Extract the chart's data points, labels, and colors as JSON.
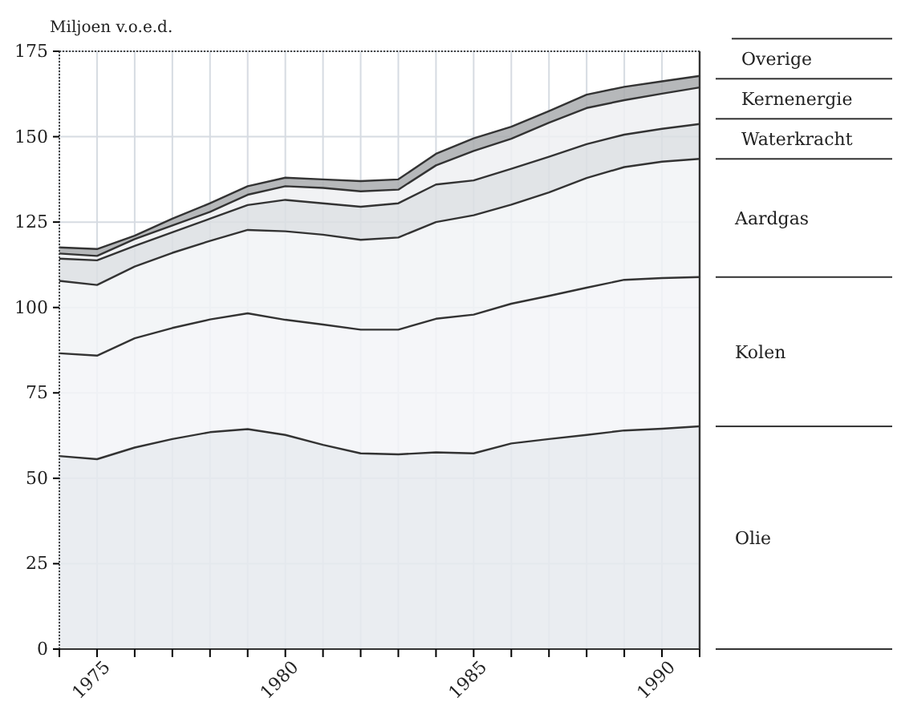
{
  "chart_data": {
    "type": "area",
    "stacked": true,
    "ylabel": "Miljoen v.o.e.d.",
    "x": [
      1974,
      1975,
      1976,
      1977,
      1978,
      1979,
      1980,
      1981,
      1982,
      1983,
      1984,
      1985,
      1986,
      1987,
      1988,
      1989,
      1990,
      1991
    ],
    "series": [
      {
        "name": "Olie",
        "color": "#e6eaef",
        "values": [
          56.5,
          55.6,
          59,
          61.5,
          63.5,
          64.4,
          62.7,
          59.8,
          57.3,
          57,
          57.6,
          57.3,
          60.2,
          61.5,
          62.7,
          64,
          64.5,
          65.2
        ]
      },
      {
        "name": "Kolen",
        "color": "#f3f5f8",
        "values": [
          30.1,
          30.3,
          32,
          32.5,
          33,
          33.9,
          33.7,
          35.2,
          36.2,
          36.5,
          39.1,
          40.6,
          40.9,
          41.9,
          43.1,
          44.1,
          44.1,
          43.7
        ]
      },
      {
        "name": "Aardgas",
        "color": "#f1f3f6",
        "values": [
          21.2,
          20.7,
          21,
          22,
          23,
          24.4,
          25.9,
          26.3,
          26.3,
          27,
          28.3,
          29.1,
          29,
          30.3,
          32.1,
          33,
          34.1,
          34.6
        ]
      },
      {
        "name": "Waterkracht",
        "color": "#dcdfe3",
        "values": [
          6.5,
          7.2,
          6,
          6,
          6.5,
          7.3,
          9.2,
          9.2,
          9.7,
          10,
          11,
          10.2,
          10.5,
          10.4,
          9.9,
          9.5,
          9.6,
          10.2
        ]
      },
      {
        "name": "Kernenergie",
        "color": "#eef0f2",
        "values": [
          1.5,
          1.3,
          2,
          2,
          2,
          3,
          4,
          4.5,
          4.5,
          4,
          5.6,
          8.6,
          8.8,
          10,
          10.6,
          10.1,
          10.3,
          10.7
        ]
      },
      {
        "name": "Overige",
        "color": "#a9abae",
        "values": [
          1.8,
          2,
          1,
          2,
          2.5,
          2.5,
          2.5,
          2.5,
          3,
          3,
          3.4,
          3.7,
          3.5,
          3.4,
          3.9,
          3.9,
          3.6,
          3.4
        ]
      }
    ],
    "xlim": [
      1974,
      1991
    ],
    "xticks": [
      {
        "value": 1974,
        "label": null
      },
      1975,
      {
        "value": 1976,
        "label": null
      },
      {
        "value": 1977,
        "label": null
      },
      {
        "value": 1978,
        "label": null
      },
      {
        "value": 1979,
        "label": null
      },
      1980,
      {
        "value": 1981,
        "label": null
      },
      {
        "value": 1982,
        "label": null
      },
      {
        "value": 1983,
        "label": null
      },
      {
        "value": 1984,
        "label": null
      },
      1985,
      {
        "value": 1986,
        "label": null
      },
      {
        "value": 1987,
        "label": null
      },
      {
        "value": 1988,
        "label": null
      },
      {
        "value": 1989,
        "label": null
      },
      1990,
      {
        "value": 1991,
        "label": null
      }
    ],
    "ylim": [
      0,
      175
    ],
    "yticks": [
      0,
      25,
      50,
      75,
      100,
      125,
      150,
      175
    ],
    "grid": true,
    "legend": "right"
  }
}
